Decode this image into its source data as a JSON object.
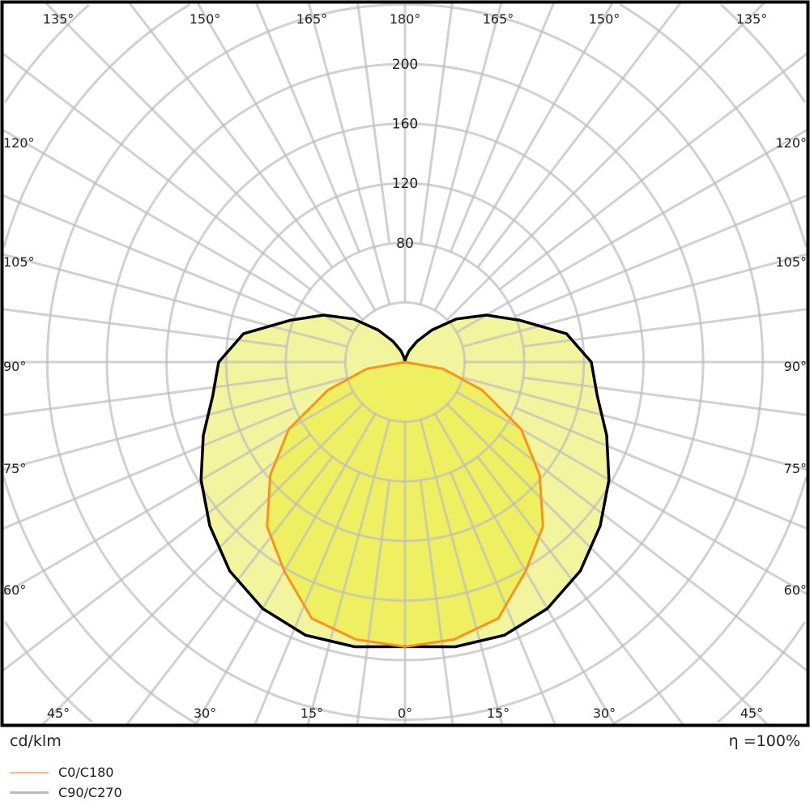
{
  "chart_data": {
    "type": "polar",
    "unit_label": "cd/klm",
    "efficiency_label": "η =100%",
    "radial_ticks": [
      80,
      120,
      160,
      200
    ],
    "radial_rings_step": 40,
    "radial_max_shown": 200,
    "angle_labels_top": [
      "135°",
      "150°",
      "165°",
      "180°",
      "165°",
      "150°",
      "135°"
    ],
    "angle_labels_left": [
      "120°",
      "105°",
      "90°",
      "75°",
      "60°"
    ],
    "angle_labels_right": [
      "120°",
      "105°",
      "90°",
      "75°",
      "60°"
    ],
    "angle_labels_bottom": [
      "45°",
      "30°",
      "15°",
      "0°",
      "15°",
      "30°",
      "45°"
    ],
    "grid": true,
    "legend_placement": "bottom-left",
    "series": [
      {
        "name": "C90/C270",
        "color": "#000000",
        "legend_color": "#bbbbbb",
        "fill": "#f3f59e",
        "gamma": [
          0,
          10,
          20,
          30,
          40,
          50,
          60,
          70,
          80,
          90,
          100,
          110,
          120,
          130,
          140,
          150,
          160,
          170,
          180
        ],
        "values": [
          191,
          194,
          195,
          191,
          183,
          171,
          158,
          144,
          131,
          125,
          110,
          82,
          63,
          45,
          28,
          16,
          8,
          3,
          0
        ]
      },
      {
        "name": "C0/C180",
        "color": "#f7931e",
        "legend_color": "#f7b98a",
        "fill": "#eef062",
        "gamma": [
          0,
          10,
          20,
          30,
          40,
          50,
          60,
          70,
          80,
          90
        ],
        "values": [
          191,
          189,
          183,
          162,
          144,
          118,
          90,
          55,
          26,
          0
        ]
      }
    ]
  }
}
